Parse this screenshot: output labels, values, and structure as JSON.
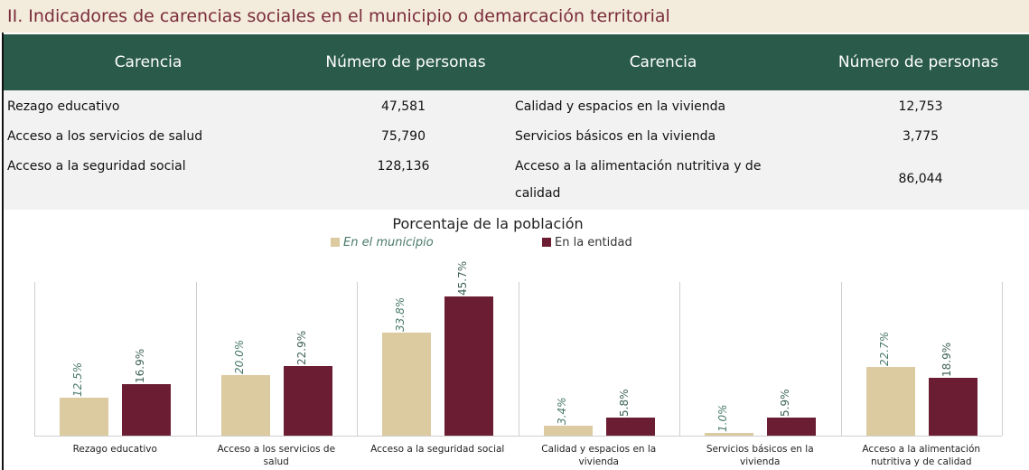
{
  "header": {
    "title": "II. Indicadores de carencias sociales en el municipio o demarcación territorial"
  },
  "table": {
    "headers": [
      "Carencia",
      "Número de personas",
      "Carencia",
      "Número de personas"
    ],
    "rows": [
      [
        "Rezago educativo",
        "47,581",
        "Calidad y espacios en la vivienda",
        "12,753"
      ],
      [
        "Acceso a los servicios de salud",
        "75,790",
        "Servicios básicos en la vivienda",
        "3,775"
      ],
      [
        "Acceso a la seguridad social",
        "128,136",
        "Acceso a la alimentación nutritiva y de calidad",
        "86,044"
      ]
    ]
  },
  "chart_data": {
    "type": "bar",
    "title": "Porcentaje de la población",
    "categories": [
      "Rezago educativo",
      "Acceso a los servicios de salud",
      "Acceso a la seguridad social",
      "Calidad y espacios en la vivienda",
      "Servicios básicos en la vivienda",
      "Acceso a la alimentación nutritiva y de calidad"
    ],
    "series": [
      {
        "name": "En el municipio",
        "color": "#dccaa0",
        "values": [
          12.5,
          20.0,
          33.8,
          3.4,
          1.0,
          22.7
        ],
        "value_labels": [
          "12.5%",
          "20.0%",
          "33.8%",
          "3.4%",
          "1.0%",
          "22.7%"
        ]
      },
      {
        "name": "En la entidad",
        "color": "#6b1e33",
        "values": [
          16.9,
          22.9,
          45.7,
          5.8,
          5.9,
          18.9
        ],
        "value_labels": [
          "16.9%",
          "22.9%",
          "45.7%",
          "5.8%",
          "5.9%",
          "18.9%"
        ]
      }
    ]
  }
}
